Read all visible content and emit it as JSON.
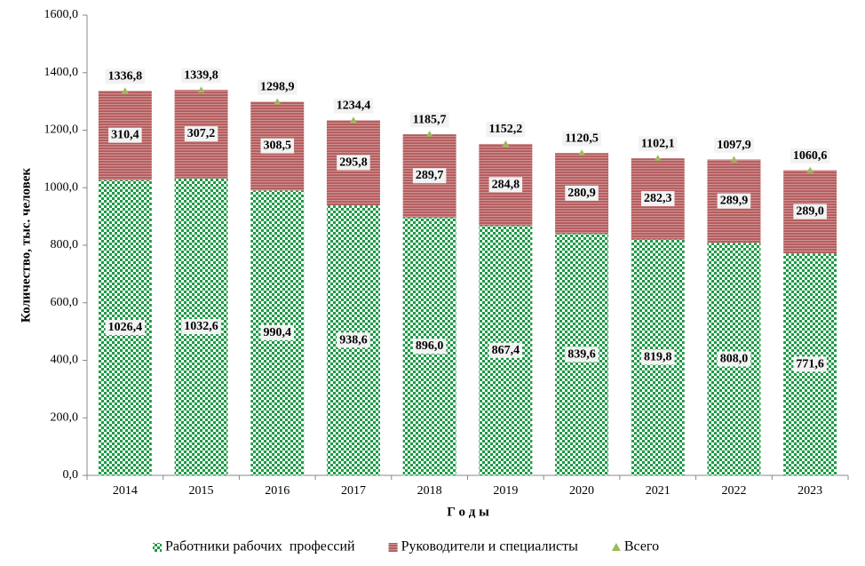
{
  "chart_data": {
    "type": "stacked_bar",
    "categories": [
      "2014",
      "2015",
      "2016",
      "2017",
      "2018",
      "2019",
      "2020",
      "2021",
      "2022",
      "2023"
    ],
    "series": [
      {
        "name": "Работники рабочих  профессий",
        "color": "#1e9a46",
        "kind": "bar",
        "values": [
          1026.4,
          1032.6,
          990.4,
          938.6,
          896.0,
          867.4,
          839.6,
          819.8,
          808.0,
          771.6
        ],
        "value_labels": [
          "1026,4",
          "1032,6",
          "990,4",
          "938,6",
          "896,0",
          "867,4",
          "839,6",
          "819,8",
          "808,0",
          "771,6"
        ]
      },
      {
        "name": "Руководители и специалисты",
        "color": "#b3595a",
        "kind": "bar",
        "values": [
          310.4,
          307.2,
          308.5,
          295.8,
          289.7,
          284.8,
          280.9,
          282.3,
          289.9,
          289.0
        ],
        "value_labels": [
          "310,4",
          "307,2",
          "308,5",
          "295,8",
          "289,7",
          "284,8",
          "280,9",
          "282,3",
          "289,9",
          "289,0"
        ]
      },
      {
        "name": "Всего",
        "color": "#9bbb59",
        "kind": "marker",
        "values": [
          1336.8,
          1339.8,
          1298.9,
          1234.4,
          1185.7,
          1152.2,
          1120.5,
          1102.1,
          1097.9,
          1060.6
        ],
        "value_labels": [
          "1336,8",
          "1339,8",
          "1298,9",
          "1234,4",
          "1185,7",
          "1152,2",
          "1120,5",
          "1102,1",
          "1097,9",
          "1060,6"
        ]
      }
    ],
    "ylim": [
      0,
      1600
    ],
    "yticks": [
      {
        "value": 0,
        "label": "0,0"
      },
      {
        "value": 200,
        "label": "200,0"
      },
      {
        "value": 400,
        "label": "400,0"
      },
      {
        "value": 600,
        "label": "600,0"
      },
      {
        "value": 800,
        "label": "800,0"
      },
      {
        "value": 1000,
        "label": "1000,0"
      },
      {
        "value": 1200,
        "label": "1200,0"
      },
      {
        "value": 1400,
        "label": "1400,0"
      },
      {
        "value": 1600,
        "label": "1600,0"
      }
    ],
    "ylabel": "Количество, тыс. человек",
    "xlabel": "Г о д ы",
    "grid": false,
    "legend": "bottom"
  }
}
